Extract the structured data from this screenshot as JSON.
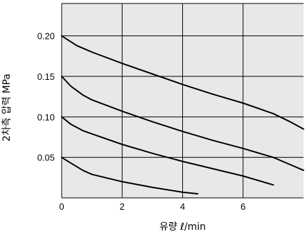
{
  "chart_data": {
    "type": "line",
    "title": "",
    "xlabel": "유량 ℓ/min",
    "ylabel": "2차측 압력 MPa",
    "xlim": [
      0,
      8
    ],
    "ylim": [
      0,
      0.24
    ],
    "x_ticks": [
      0,
      2,
      4,
      6
    ],
    "x_tick_labels": [
      "0",
      "2",
      "4",
      "6"
    ],
    "y_ticks": [
      0.05,
      0.1,
      0.15,
      0.2
    ],
    "y_tick_labels": [
      "0.05",
      "0.10",
      "0.15",
      "0.20"
    ],
    "grid": true,
    "legend": "none",
    "series": [
      {
        "x": [
          0,
          0.5,
          1,
          2,
          3,
          4,
          5,
          6,
          7,
          7.5,
          8
        ],
        "y": [
          0.2,
          0.188,
          0.18,
          0.166,
          0.153,
          0.14,
          0.128,
          0.117,
          0.104,
          0.095,
          0.085
        ]
      },
      {
        "x": [
          0,
          0.3,
          0.7,
          1,
          2,
          3,
          4,
          5,
          6,
          7,
          7.5,
          8
        ],
        "y": [
          0.15,
          0.138,
          0.127,
          0.121,
          0.107,
          0.094,
          0.082,
          0.071,
          0.061,
          0.05,
          0.042,
          0.034
        ]
      },
      {
        "x": [
          0,
          0.3,
          0.7,
          1,
          2,
          3,
          4,
          5,
          6,
          7
        ],
        "y": [
          0.1,
          0.091,
          0.083,
          0.079,
          0.066,
          0.055,
          0.045,
          0.036,
          0.027,
          0.016
        ]
      },
      {
        "x": [
          0,
          0.3,
          0.7,
          1,
          2,
          3,
          4,
          4.5
        ],
        "y": [
          0.05,
          0.043,
          0.034,
          0.029,
          0.02,
          0.013,
          0.007,
          0.005
        ]
      }
    ]
  },
  "colors": {
    "plot_background": "#e8e8e8",
    "grid": "#000000",
    "curve": "#000000",
    "text": "#000000"
  }
}
